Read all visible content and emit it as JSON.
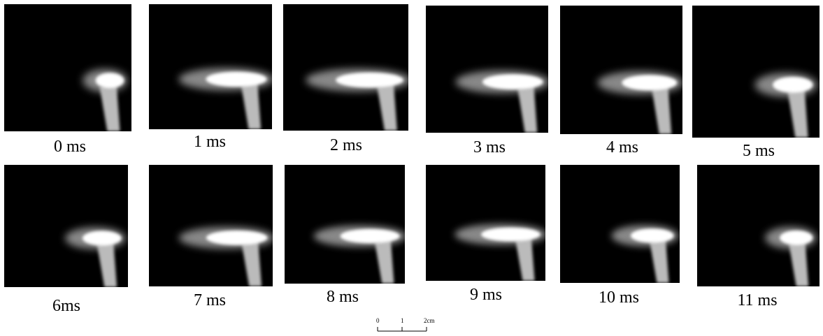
{
  "panels": [
    {
      "label": "0 ms"
    },
    {
      "label": "1 ms"
    },
    {
      "label": "2 ms"
    },
    {
      "label": "3 ms"
    },
    {
      "label": "4 ms"
    },
    {
      "label": "5 ms"
    },
    {
      "label": "6ms"
    },
    {
      "label": "7 ms"
    },
    {
      "label": "8 ms"
    },
    {
      "label": "9 ms"
    },
    {
      "label": "10 ms"
    },
    {
      "label": "11 ms"
    }
  ],
  "scale_bar": {
    "labels": [
      "0",
      "1",
      "2cm"
    ]
  }
}
